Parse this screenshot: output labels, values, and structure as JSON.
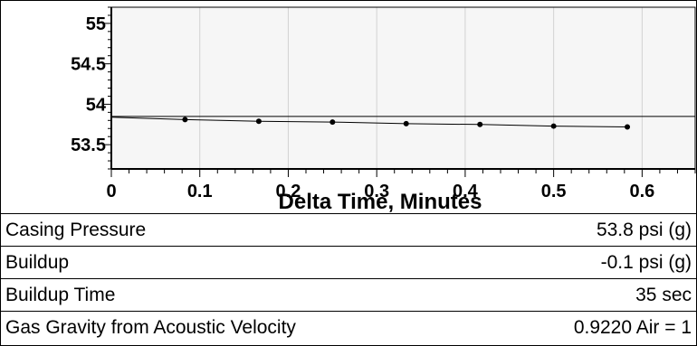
{
  "chart_data": {
    "type": "line",
    "title": "",
    "xlabel": "Delta Time, Minutes",
    "ylabel": "",
    "xlim": [
      0,
      0.66
    ],
    "ylim": [
      53.2,
      55.2
    ],
    "x_ticks": [
      0,
      0.1,
      0.2,
      0.3,
      0.4,
      0.5,
      0.6
    ],
    "x_tick_labels": [
      "0",
      "0.1",
      "0.2",
      "0.3",
      "0.4",
      "0.5",
      "0.6"
    ],
    "y_ticks": [
      53.5,
      54,
      54.5,
      55
    ],
    "y_tick_labels": [
      "53.5",
      "54",
      "54.5",
      "55"
    ],
    "grid": "vertical",
    "reference_line_y": 53.85,
    "series": [
      {
        "x": [
          0,
          0.0833,
          0.1667,
          0.25,
          0.3333,
          0.4167,
          0.5,
          0.5833
        ],
        "y": [
          53.84,
          53.81,
          53.79,
          53.78,
          53.76,
          53.75,
          53.73,
          53.72
        ]
      }
    ],
    "colors": {
      "plot_background": "#f6f6f6",
      "grid": "#d2d2d2",
      "line": "#000000"
    }
  },
  "info": [
    {
      "label": "Casing Pressure",
      "value": "53.8 psi (g)"
    },
    {
      "label": "Buildup",
      "value": "-0.1 psi (g)"
    },
    {
      "label": "Buildup Time",
      "value": "35 sec"
    },
    {
      "label": "Gas Gravity from Acoustic Velocity",
      "value": "0.9220 Air = 1"
    }
  ]
}
